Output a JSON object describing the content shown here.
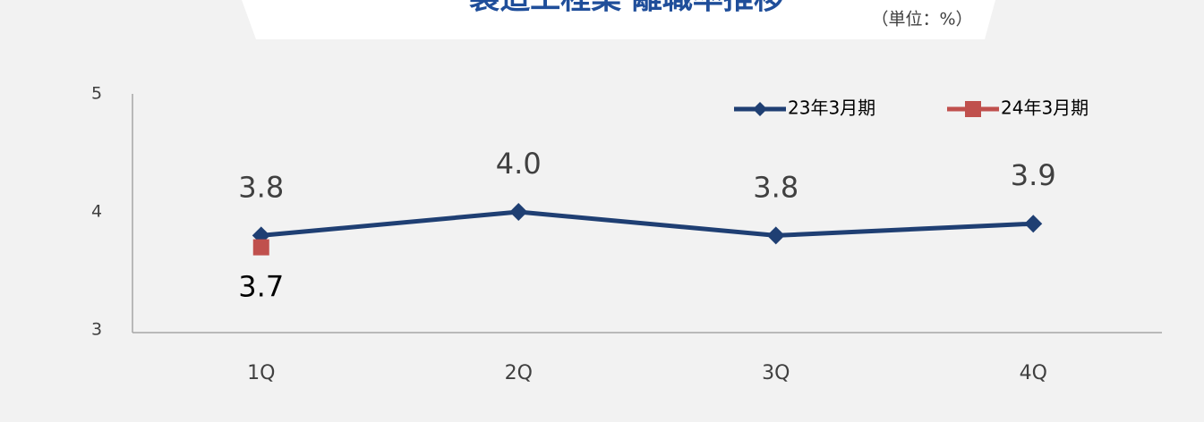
{
  "chart_data": {
    "type": "line",
    "title": "製造工程業 離職率推移",
    "unit_label": "（単位：%）",
    "categories": [
      "1Q",
      "2Q",
      "3Q",
      "4Q"
    ],
    "series": [
      {
        "name": "23年3月期",
        "color": "#1f3f73",
        "marker": "diamond",
        "values": [
          3.8,
          4.0,
          3.8,
          3.9
        ],
        "value_labels": [
          "3.8",
          "4.0",
          "3.8",
          "3.9"
        ]
      },
      {
        "name": "24年3月期",
        "color": "#c0504d",
        "marker": "square",
        "values": [
          3.7,
          null,
          null,
          null
        ]
      }
    ],
    "ylim": [
      3,
      5
    ],
    "yticks": [
      3,
      4,
      5
    ],
    "grid": false,
    "legend": "top-right"
  }
}
